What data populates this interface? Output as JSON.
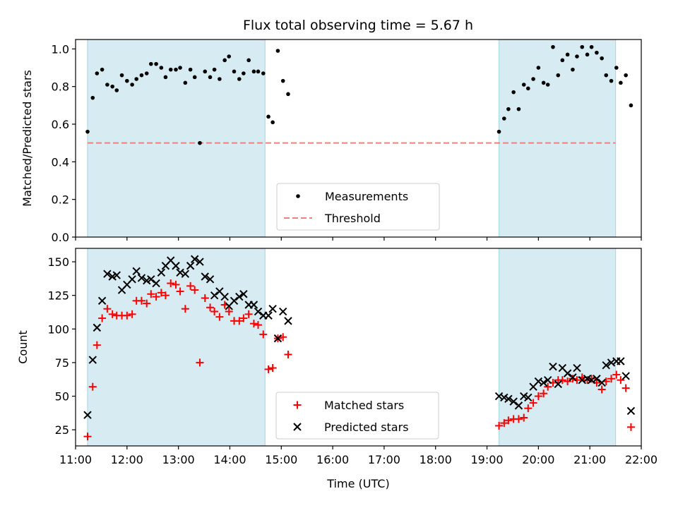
{
  "title": "Flux total observing time = 5.67 h",
  "chart_data": [
    {
      "type": "scatter",
      "ylabel": "Matched/Predicted stars",
      "xlabel": "",
      "xlim": [
        "11:00",
        "22:00"
      ],
      "ylim": [
        0,
        1.05
      ],
      "yticks": [
        "0.0",
        "0.2",
        "0.4",
        "0.6",
        "0.8",
        "1.0"
      ],
      "ytick_values": [
        0,
        0.2,
        0.4,
        0.6,
        0.8,
        1.0
      ],
      "shaded_intervals": [
        [
          "11:14",
          "14:41"
        ],
        [
          "19:14",
          "21:30"
        ]
      ],
      "threshold": 0.5,
      "threshold_range": [
        "11:14",
        "21:30"
      ],
      "legend": {
        "position": "lower center",
        "entries": [
          {
            "label": "Measurements",
            "marker": "dot",
            "color": "#000000"
          },
          {
            "label": "Threshold",
            "marker": "dashed-line",
            "color": "#f08080"
          }
        ]
      },
      "series": [
        {
          "name": "Measurements",
          "color": "#000000",
          "points": [
            [
              "11:14",
              0.56
            ],
            [
              "11:20",
              0.74
            ],
            [
              "11:25",
              0.87
            ],
            [
              "11:31",
              0.89
            ],
            [
              "11:37",
              0.81
            ],
            [
              "11:43",
              0.8
            ],
            [
              "11:48",
              0.78
            ],
            [
              "11:54",
              0.86
            ],
            [
              "12:00",
              0.83
            ],
            [
              "12:06",
              0.81
            ],
            [
              "12:11",
              0.84
            ],
            [
              "12:17",
              0.86
            ],
            [
              "12:23",
              0.87
            ],
            [
              "12:28",
              0.92
            ],
            [
              "12:34",
              0.92
            ],
            [
              "12:40",
              0.9
            ],
            [
              "12:45",
              0.85
            ],
            [
              "12:51",
              0.89
            ],
            [
              "12:57",
              0.89
            ],
            [
              "13:02",
              0.9
            ],
            [
              "13:08",
              0.82
            ],
            [
              "13:14",
              0.89
            ],
            [
              "13:19",
              0.85
            ],
            [
              "13:25",
              0.5
            ],
            [
              "13:31",
              0.88
            ],
            [
              "13:37",
              0.85
            ],
            [
              "13:42",
              0.89
            ],
            [
              "13:48",
              0.84
            ],
            [
              "13:54",
              0.94
            ],
            [
              "13:59",
              0.96
            ],
            [
              "14:05",
              0.88
            ],
            [
              "14:11",
              0.84
            ],
            [
              "14:16",
              0.87
            ],
            [
              "14:22",
              0.94
            ],
            [
              "14:28",
              0.88
            ],
            [
              "14:33",
              0.88
            ],
            [
              "14:39",
              0.87
            ],
            [
              "14:45",
              0.64
            ],
            [
              "14:50",
              0.61
            ],
            [
              "14:56",
              0.99
            ],
            [
              "15:02",
              0.83
            ],
            [
              "15:08",
              0.76
            ],
            [
              "19:14",
              0.56
            ],
            [
              "19:20",
              0.63
            ],
            [
              "19:25",
              0.68
            ],
            [
              "19:31",
              0.77
            ],
            [
              "19:37",
              0.68
            ],
            [
              "19:43",
              0.81
            ],
            [
              "19:48",
              0.79
            ],
            [
              "19:54",
              0.84
            ],
            [
              "20:00",
              0.9
            ],
            [
              "20:06",
              0.82
            ],
            [
              "20:11",
              0.81
            ],
            [
              "20:17",
              1.01
            ],
            [
              "20:23",
              0.86
            ],
            [
              "20:28",
              0.94
            ],
            [
              "20:34",
              0.97
            ],
            [
              "20:40",
              0.89
            ],
            [
              "20:45",
              0.96
            ],
            [
              "20:51",
              1.01
            ],
            [
              "20:57",
              0.97
            ],
            [
              "21:02",
              1.01
            ],
            [
              "21:08",
              0.98
            ],
            [
              "21:14",
              0.95
            ],
            [
              "21:19",
              0.86
            ],
            [
              "21:25",
              0.83
            ],
            [
              "21:31",
              0.9
            ],
            [
              "21:36",
              0.82
            ],
            [
              "21:42",
              0.86
            ],
            [
              "21:48",
              0.7
            ]
          ]
        }
      ]
    },
    {
      "type": "scatter",
      "ylabel": "Count",
      "xlabel": "Time (UTC)",
      "xlim": [
        "11:00",
        "22:00"
      ],
      "ylim": [
        13,
        160
      ],
      "yticks": [
        "25",
        "50",
        "75",
        "100",
        "125",
        "150"
      ],
      "ytick_values": [
        25,
        50,
        75,
        100,
        125,
        150
      ],
      "xticks": [
        "11:00",
        "12:00",
        "13:00",
        "14:00",
        "15:00",
        "16:00",
        "17:00",
        "18:00",
        "19:00",
        "20:00",
        "21:00",
        "22:00"
      ],
      "shaded_intervals": [
        [
          "11:14",
          "14:41"
        ],
        [
          "19:14",
          "21:30"
        ]
      ],
      "legend": {
        "position": "lower center",
        "entries": [
          {
            "label": "Matched stars",
            "marker": "plus",
            "color": "#ff0000"
          },
          {
            "label": "Predicted stars",
            "marker": "x",
            "color": "#000000"
          }
        ]
      },
      "series": [
        {
          "name": "Matched stars",
          "color": "#ff0000",
          "marker": "plus",
          "points": [
            [
              "11:14",
              20
            ],
            [
              "11:20",
              57
            ],
            [
              "11:25",
              88
            ],
            [
              "11:31",
              108
            ],
            [
              "11:37",
              115
            ],
            [
              "11:43",
              111
            ],
            [
              "11:48",
              110
            ],
            [
              "11:54",
              110
            ],
            [
              "12:00",
              110
            ],
            [
              "12:06",
              111
            ],
            [
              "12:11",
              121
            ],
            [
              "12:17",
              121
            ],
            [
              "12:23",
              119
            ],
            [
              "12:28",
              126
            ],
            [
              "12:34",
              124
            ],
            [
              "12:40",
              127
            ],
            [
              "12:45",
              125
            ],
            [
              "12:51",
              134
            ],
            [
              "12:57",
              133
            ],
            [
              "13:02",
              128
            ],
            [
              "13:08",
              115
            ],
            [
              "13:14",
              132
            ],
            [
              "13:19",
              129
            ],
            [
              "13:25",
              75
            ],
            [
              "13:31",
              123
            ],
            [
              "13:37",
              116
            ],
            [
              "13:42",
              113
            ],
            [
              "13:48",
              109
            ],
            [
              "13:54",
              118
            ],
            [
              "13:59",
              113
            ],
            [
              "14:05",
              106
            ],
            [
              "14:11",
              106
            ],
            [
              "14:16",
              108
            ],
            [
              "14:22",
              111
            ],
            [
              "14:28",
              104
            ],
            [
              "14:33",
              103
            ],
            [
              "14:39",
              96
            ],
            [
              "14:45",
              70
            ],
            [
              "14:50",
              71
            ],
            [
              "14:56",
              93
            ],
            [
              "15:02",
              94
            ],
            [
              "15:08",
              81
            ],
            [
              "19:14",
              28
            ],
            [
              "19:20",
              30
            ],
            [
              "19:25",
              32
            ],
            [
              "19:31",
              33
            ],
            [
              "19:37",
              33
            ],
            [
              "19:43",
              34
            ],
            [
              "19:48",
              41
            ],
            [
              "19:54",
              45
            ],
            [
              "20:00",
              50
            ],
            [
              "20:06",
              52
            ],
            [
              "20:11",
              57
            ],
            [
              "20:17",
              60
            ],
            [
              "20:23",
              62
            ],
            [
              "20:28",
              62
            ],
            [
              "20:34",
              61
            ],
            [
              "20:40",
              63
            ],
            [
              "20:45",
              62
            ],
            [
              "20:51",
              64
            ],
            [
              "20:57",
              62
            ],
            [
              "21:02",
              63
            ],
            [
              "21:08",
              60
            ],
            [
              "21:14",
              55
            ],
            [
              "21:19",
              61
            ],
            [
              "21:25",
              63
            ],
            [
              "21:31",
              66
            ],
            [
              "21:36",
              62
            ],
            [
              "21:42",
              56
            ],
            [
              "21:48",
              27
            ]
          ]
        },
        {
          "name": "Predicted stars",
          "color": "#000000",
          "marker": "x",
          "points": [
            [
              "11:14",
              36
            ],
            [
              "11:20",
              77
            ],
            [
              "11:25",
              101
            ],
            [
              "11:31",
              121
            ],
            [
              "11:37",
              141
            ],
            [
              "11:43",
              139
            ],
            [
              "11:48",
              140
            ],
            [
              "11:54",
              129
            ],
            [
              "12:00",
              133
            ],
            [
              "12:06",
              137
            ],
            [
              "12:11",
              143
            ],
            [
              "12:17",
              138
            ],
            [
              "12:23",
              136
            ],
            [
              "12:28",
              137
            ],
            [
              "12:34",
              134
            ],
            [
              "12:40",
              142
            ],
            [
              "12:45",
              147
            ],
            [
              "12:51",
              151
            ],
            [
              "12:57",
              147
            ],
            [
              "13:02",
              142
            ],
            [
              "13:08",
              141
            ],
            [
              "13:14",
              147
            ],
            [
              "13:19",
              152
            ],
            [
              "13:25",
              150
            ],
            [
              "13:31",
              139
            ],
            [
              "13:37",
              137
            ],
            [
              "13:42",
              125
            ],
            [
              "13:48",
              128
            ],
            [
              "13:54",
              124
            ],
            [
              "13:59",
              117
            ],
            [
              "14:05",
              121
            ],
            [
              "14:11",
              124
            ],
            [
              "14:16",
              126
            ],
            [
              "14:22",
              118
            ],
            [
              "14:28",
              118
            ],
            [
              "14:33",
              113
            ],
            [
              "14:39",
              110
            ],
            [
              "14:45",
              110
            ],
            [
              "14:50",
              115
            ],
            [
              "14:56",
              93
            ],
            [
              "15:02",
              113
            ],
            [
              "15:08",
              106
            ],
            [
              "19:14",
              50
            ],
            [
              "19:20",
              49
            ],
            [
              "19:25",
              48
            ],
            [
              "19:31",
              46
            ],
            [
              "19:37",
              43
            ],
            [
              "19:43",
              50
            ],
            [
              "19:48",
              49
            ],
            [
              "19:54",
              57
            ],
            [
              "20:00",
              61
            ],
            [
              "20:06",
              60
            ],
            [
              "20:11",
              62
            ],
            [
              "20:17",
              72
            ],
            [
              "20:23",
              59
            ],
            [
              "20:28",
              71
            ],
            [
              "20:34",
              67
            ],
            [
              "20:40",
              64
            ],
            [
              "20:45",
              71
            ],
            [
              "20:51",
              62
            ],
            [
              "20:57",
              63
            ],
            [
              "21:02",
              62
            ],
            [
              "21:08",
              63
            ],
            [
              "21:14",
              60
            ],
            [
              "21:19",
              73
            ],
            [
              "21:25",
              75
            ],
            [
              "21:31",
              76
            ],
            [
              "21:36",
              76
            ],
            [
              "21:42",
              65
            ],
            [
              "21:48",
              39
            ]
          ]
        }
      ]
    }
  ]
}
